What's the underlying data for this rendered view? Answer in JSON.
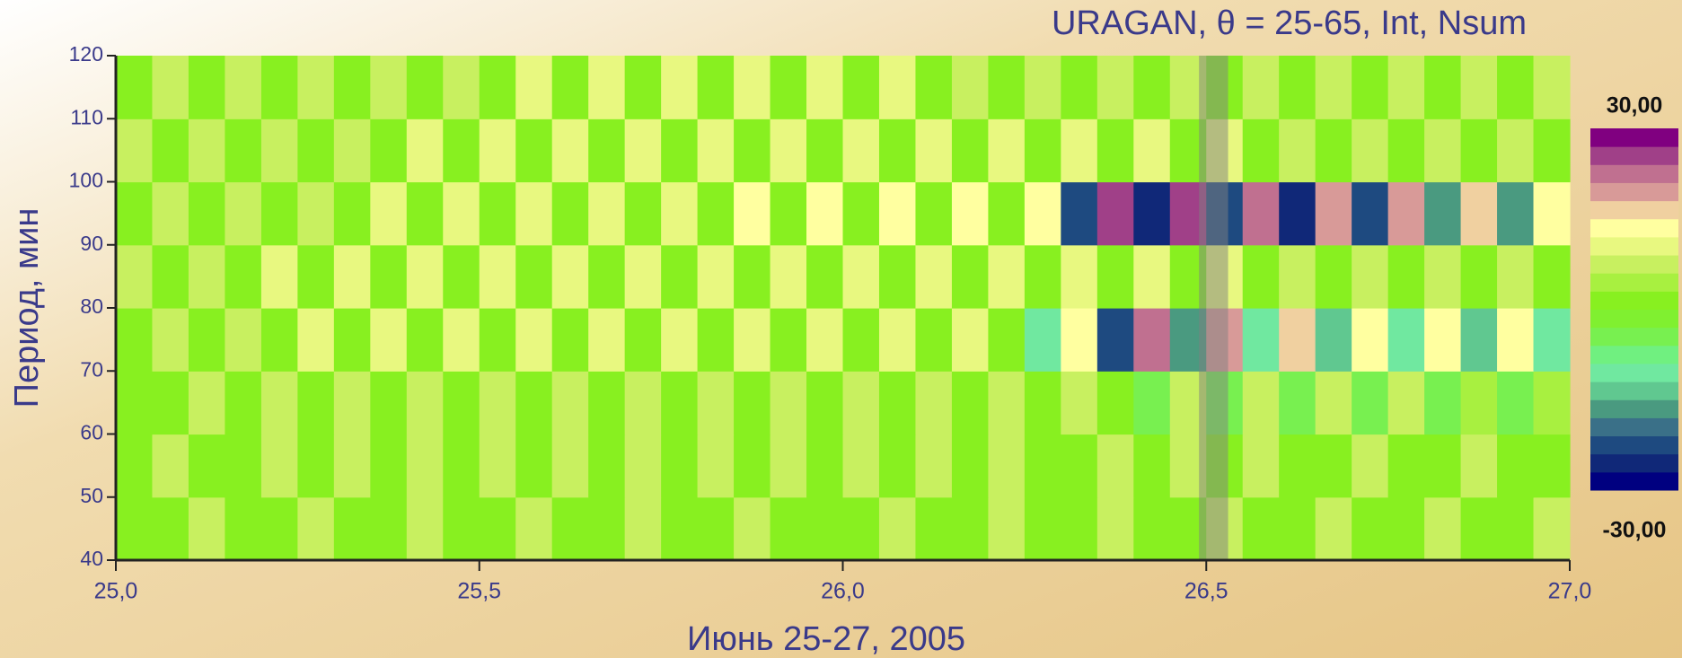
{
  "chart_data": {
    "type": "heatmap",
    "title": "URAGAN, θ = 25-65, Int, Nsum",
    "xlabel": "Июнь 25-27, 2005",
    "ylabel": "Период, мин",
    "xlim": [
      25,
      27
    ],
    "ylim": [
      40,
      120
    ],
    "xticks": [
      {
        "value": 25,
        "label": "25,0"
      },
      {
        "value": 25.5,
        "label": "25,5"
      },
      {
        "value": 26,
        "label": "26,0"
      },
      {
        "value": 26.5,
        "label": "26,5"
      },
      {
        "value": 27,
        "label": "27,0"
      }
    ],
    "yticks": [
      40,
      50,
      60,
      70,
      80,
      90,
      100,
      110,
      120
    ],
    "xbins": [
      25,
      25.05,
      25.1,
      25.15,
      25.2,
      25.25,
      25.3,
      25.35,
      25.4,
      25.45,
      25.5,
      25.55,
      25.6,
      25.65,
      25.7,
      25.75,
      25.8,
      25.85,
      25.9,
      25.95,
      26,
      26.05,
      26.1,
      26.15,
      26.2,
      26.25,
      26.3,
      26.35,
      26.4,
      26.45,
      26.5,
      26.55,
      26.6,
      26.65,
      26.7,
      26.75,
      26.8,
      26.85,
      26.9,
      26.95,
      27
    ],
    "ybins": [
      40,
      50,
      60,
      70,
      80,
      90,
      100,
      110,
      120
    ],
    "z": [
      [
        0,
        0,
        7,
        0,
        0,
        7,
        0,
        0,
        7,
        0,
        0,
        7,
        0,
        0,
        7,
        0,
        0,
        7,
        0,
        0,
        0,
        7,
        0,
        0,
        7,
        0,
        0,
        7,
        0,
        0,
        7,
        0,
        0,
        7,
        0,
        0,
        7,
        0,
        0,
        7
      ],
      [
        0,
        7,
        0,
        0,
        7,
        0,
        7,
        0,
        7,
        0,
        7,
        0,
        7,
        0,
        7,
        0,
        7,
        0,
        7,
        0,
        7,
        0,
        7,
        0,
        7,
        0,
        0,
        7,
        0,
        7,
        0,
        7,
        0,
        0,
        7,
        0,
        0,
        7,
        0,
        0
      ],
      [
        0,
        0,
        7,
        0,
        7,
        0,
        7,
        0,
        7,
        0,
        7,
        0,
        7,
        0,
        7,
        0,
        7,
        0,
        7,
        0,
        7,
        0,
        7,
        0,
        7,
        0,
        7,
        0,
        -4,
        6,
        -5,
        7,
        -4,
        6,
        -4,
        6,
        -4,
        5,
        -4,
        5
      ],
      [
        0,
        7,
        0,
        7,
        0,
        9,
        0,
        9,
        0,
        9,
        0,
        9,
        0,
        9,
        0,
        9,
        0,
        9,
        0,
        9,
        0,
        9,
        0,
        9,
        0,
        -12,
        14,
        -22,
        22,
        -18,
        20,
        -12,
        15,
        -14,
        14,
        -12,
        13,
        -14,
        12,
        -10
      ],
      [
        7,
        0,
        7,
        0,
        9,
        0,
        9,
        0,
        10,
        0,
        10,
        0,
        10,
        0,
        10,
        0,
        10,
        0,
        10,
        0,
        10,
        0,
        9,
        0,
        9,
        0,
        9,
        0,
        9,
        0,
        9,
        0,
        8,
        0,
        8,
        0,
        7,
        0,
        7,
        0
      ],
      [
        0,
        7,
        0,
        7,
        0,
        7,
        0,
        9,
        0,
        10,
        0,
        10,
        0,
        11,
        0,
        11,
        0,
        12,
        0,
        12,
        0,
        12,
        0,
        12,
        0,
        14,
        -22,
        26,
        -26,
        26,
        -24,
        22,
        -25,
        20,
        -22,
        20,
        -18,
        16,
        -18,
        14
      ],
      [
        7,
        0,
        7,
        0,
        7,
        0,
        7,
        0,
        9,
        0,
        9,
        0,
        9,
        0,
        10,
        0,
        10,
        0,
        10,
        0,
        10,
        0,
        10,
        0,
        9,
        0,
        9,
        0,
        9,
        0,
        9,
        0,
        8,
        0,
        8,
        0,
        7,
        0,
        7,
        0
      ],
      [
        0,
        7,
        0,
        7,
        0,
        7,
        0,
        7,
        0,
        7,
        0,
        9,
        0,
        9,
        0,
        9,
        0,
        9,
        0,
        9,
        0,
        9,
        0,
        7,
        0,
        7,
        0,
        7,
        0,
        7,
        0,
        7,
        0,
        7,
        0,
        7,
        0,
        7,
        0,
        7
      ]
    ],
    "zlim": [
      -30,
      30
    ],
    "zticks": [
      {
        "value": 30,
        "label": "30,00"
      },
      {
        "value": -30,
        "label": "-30,00"
      }
    ],
    "colorscale": [
      "#000080",
      "#102878",
      "#1e4a80",
      "#3a7088",
      "#4a9a80",
      "#60c890",
      "#70e8a0",
      "#70f080",
      "#78f050",
      "#80f030",
      "#88f020",
      "#a8f040",
      "#c8f060",
      "#e8f880",
      "#ffffa0",
      "#f0d0a0",
      "#d89a98",
      "#c07090",
      "#a04088",
      "#800080"
    ],
    "highlight_span": [
      26.49,
      26.53
    ],
    "highlight_color": "#808080"
  }
}
